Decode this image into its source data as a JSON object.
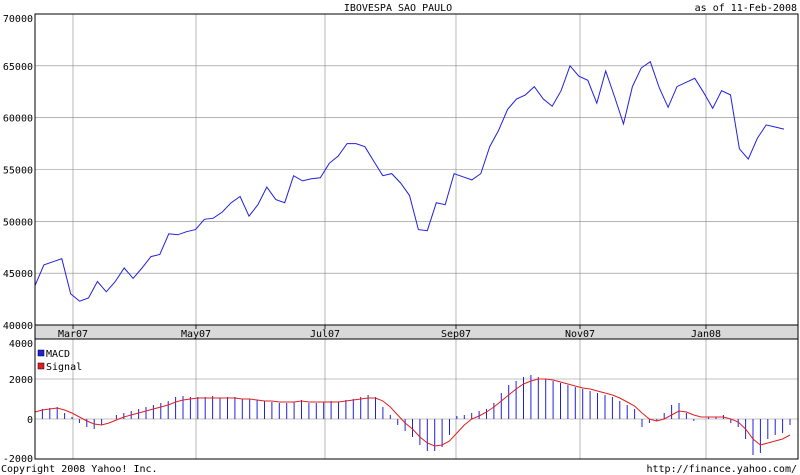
{
  "header": {
    "title": "IBOVESPA SAO PAULO",
    "date": "as of 11-Feb-2008"
  },
  "footer": {
    "copyright": "Copyright 2008 Yahoo! Inc.",
    "url": "http://finance.yahoo.com/"
  },
  "colors": {
    "price_line": "#2020e0",
    "macd": "#2020e0",
    "signal": "#e02020",
    "grid": "#888888",
    "axis_band": "#d9d9d9"
  },
  "chart_data": [
    {
      "type": "line",
      "title": "IBOVESPA SAO PAULO",
      "grid": true,
      "ylim": [
        40000,
        70000
      ],
      "y_ticks": [
        40000,
        45000,
        50000,
        55000,
        60000,
        65000,
        70000
      ],
      "x_tick_labels": [
        "Mar07",
        "May07",
        "Jul07",
        "Sep07",
        "Nov07",
        "Jan08"
      ],
      "series": [
        {
          "values": [
            43800,
            45800,
            46100,
            46400,
            43000,
            42300,
            42600,
            44200,
            43200,
            44200,
            45500,
            44500,
            45500,
            46600,
            46800,
            48800,
            48700,
            49000,
            49200,
            50200,
            50300,
            50900,
            51800,
            52400,
            50500,
            51600,
            53300,
            52100,
            51800,
            54400,
            53900,
            54100,
            54200,
            55600,
            56300,
            57500,
            57500,
            57200,
            55800,
            54400,
            54600,
            53700,
            52500,
            49200,
            49100,
            51800,
            51600,
            54600,
            54300,
            54000,
            54600,
            57200,
            58800,
            60800,
            61800,
            62200,
            63000,
            61800,
            61100,
            62600,
            65000,
            64000,
            63600,
            61400,
            64500,
            62000,
            59400,
            63000,
            64800,
            65400,
            62900,
            61000,
            63000,
            63400,
            63800,
            62400,
            60900,
            62600,
            62200,
            57000,
            56000,
            58000,
            59300,
            59100,
            58900
          ]
        }
      ]
    },
    {
      "type": "bar",
      "grid": true,
      "legend_position": "top-left",
      "ylim": [
        -2000,
        4000
      ],
      "y_ticks": [
        -2000,
        0,
        2000,
        4000
      ],
      "series": [
        {
          "name": "MACD",
          "values": [
            400,
            500,
            550,
            600,
            300,
            100,
            -200,
            -400,
            -500,
            -300,
            0,
            200,
            300,
            400,
            500,
            600,
            700,
            800,
            900,
            1100,
            1150,
            1100,
            1100,
            1100,
            1150,
            1050,
            1100,
            1100,
            1000,
            1000,
            950,
            900,
            850,
            800,
            800,
            850,
            950,
            800,
            800,
            850,
            900,
            850,
            950,
            1000,
            1100,
            1200,
            1100,
            600,
            200,
            -300,
            -600,
            -900,
            -1300,
            -1600,
            -1600,
            -1400,
            -800,
            150,
            200,
            300,
            400,
            500,
            800,
            1300,
            1700,
            1900,
            2100,
            2200,
            2100,
            2000,
            1900,
            1800,
            1700,
            1600,
            1500,
            1400,
            1300,
            1200,
            1100,
            900,
            700,
            500,
            -400,
            -200,
            -100,
            300,
            700,
            800,
            300,
            -100,
            0,
            100,
            100,
            200,
            -200,
            -400,
            -1000,
            -1800,
            -1700,
            -1000,
            -800,
            -700,
            -300
          ]
        },
        {
          "name": "Signal",
          "values": [
            350,
            450,
            500,
            550,
            450,
            300,
            100,
            -100,
            -250,
            -300,
            -200,
            -50,
            100,
            200,
            300,
            400,
            500,
            600,
            700,
            850,
            950,
            1000,
            1050,
            1050,
            1050,
            1050,
            1050,
            1050,
            1000,
            1000,
            950,
            900,
            900,
            850,
            850,
            850,
            900,
            850,
            850,
            850,
            850,
            850,
            900,
            950,
            1000,
            1050,
            1050,
            900,
            600,
            200,
            -200,
            -500,
            -900,
            -1200,
            -1350,
            -1300,
            -1100,
            -700,
            -300,
            0,
            150,
            350,
            600,
            900,
            1200,
            1500,
            1750,
            1900,
            2000,
            2000,
            1950,
            1850,
            1750,
            1650,
            1550,
            1500,
            1400,
            1300,
            1200,
            1050,
            850,
            650,
            300,
            0,
            -100,
            0,
            200,
            400,
            350,
            200,
            100,
            100,
            100,
            100,
            0,
            -150,
            -500,
            -1000,
            -1300,
            -1200,
            -1100,
            -1000,
            -800
          ]
        }
      ]
    }
  ]
}
